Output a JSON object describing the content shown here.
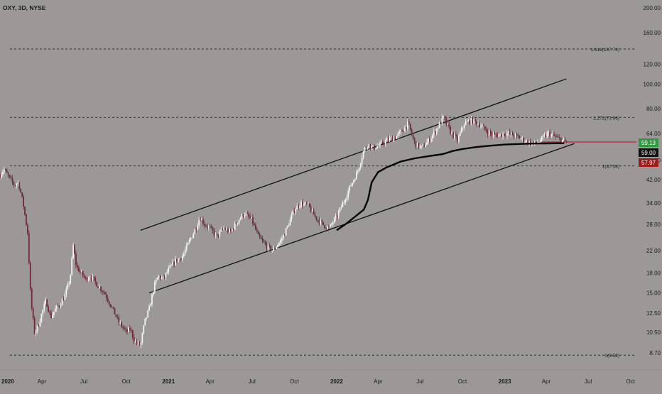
{
  "chart_data": {
    "type": "candlestick",
    "symbol_label": "OXY, 3D, NYSE",
    "y_scale": "log",
    "ylim": [
      7.5,
      215
    ],
    "x_start": "2020-01-01",
    "x_end": "2023-10-20",
    "y_ticks": [
      "200.00",
      "160.00",
      "120.00",
      "100.00",
      "80.00",
      "64.00",
      "50.00",
      "42.00",
      "34.00",
      "28.00",
      "22.00",
      "18.00",
      "15.00",
      "12.50",
      "10.50",
      "8.70"
    ],
    "x_ticks": [
      {
        "label": "2020",
        "date": "2020-01-01",
        "bold": true
      },
      {
        "label": "Apr",
        "date": "2020-04-01",
        "bold": false
      },
      {
        "label": "Jul",
        "date": "2020-07-01",
        "bold": false
      },
      {
        "label": "Oct",
        "date": "2020-10-01",
        "bold": false
      },
      {
        "label": "2021",
        "date": "2021-01-01",
        "bold": true
      },
      {
        "label": "Apr",
        "date": "2021-04-01",
        "bold": false
      },
      {
        "label": "Jul",
        "date": "2021-07-01",
        "bold": false
      },
      {
        "label": "Oct",
        "date": "2021-10-01",
        "bold": false
      },
      {
        "label": "2022",
        "date": "2022-01-01",
        "bold": true
      },
      {
        "label": "Apr",
        "date": "2022-04-01",
        "bold": false
      },
      {
        "label": "Jul",
        "date": "2022-07-01",
        "bold": false
      },
      {
        "label": "Oct",
        "date": "2022-10-01",
        "bold": false
      },
      {
        "label": "2023",
        "date": "2023-01-01",
        "bold": true
      },
      {
        "label": "Apr",
        "date": "2023-04-01",
        "bold": false
      },
      {
        "label": "Jul",
        "date": "2023-07-01",
        "bold": false
      },
      {
        "label": "Oct",
        "date": "2023-10-01",
        "bold": false
      }
    ],
    "fib_levels": [
      {
        "label": "1.618(137.74)",
        "value": 137.74
      },
      {
        "label": "1.272(73.96)",
        "value": 73.96
      },
      {
        "label": "1(47.58)",
        "value": 47.58
      },
      {
        "label": "0(8.52)",
        "value": 8.52
      }
    ],
    "channel_lines": [
      {
        "name": "upper",
        "points": [
          [
            "2020-11-01",
            26.5
          ],
          [
            "2023-05-15",
            105
          ]
        ]
      },
      {
        "name": "lower",
        "points": [
          [
            "2020-11-20",
            15
          ],
          [
            "2023-06-01",
            58.3
          ]
        ]
      }
    ],
    "moving_average": [
      [
        "2022-01-01",
        26.5
      ],
      [
        "2022-01-20",
        28.0
      ],
      [
        "2022-02-10",
        30.0
      ],
      [
        "2022-03-01",
        32.0
      ],
      [
        "2022-03-10",
        35.0
      ],
      [
        "2022-03-18",
        41.0
      ],
      [
        "2022-04-01",
        45.0
      ],
      [
        "2022-04-20",
        47.0
      ],
      [
        "2022-05-20",
        49.5
      ],
      [
        "2022-06-20",
        51.0
      ],
      [
        "2022-07-20",
        52.0
      ],
      [
        "2022-08-20",
        53.0
      ],
      [
        "2022-09-10",
        54.5
      ],
      [
        "2022-10-01",
        55.5
      ],
      [
        "2022-11-01",
        56.5
      ],
      [
        "2022-12-01",
        57.2
      ],
      [
        "2023-01-01",
        57.8
      ],
      [
        "2023-02-01",
        58.1
      ],
      [
        "2023-03-01",
        58.3
      ],
      [
        "2023-04-01",
        58.4
      ],
      [
        "2023-05-10",
        58.5
      ]
    ],
    "price_series": [
      [
        "2020-01-01",
        44
      ],
      [
        "2020-01-10",
        46
      ],
      [
        "2020-01-20",
        43
      ],
      [
        "2020-02-01",
        40
      ],
      [
        "2020-02-10",
        41
      ],
      [
        "2020-02-20",
        34
      ],
      [
        "2020-03-01",
        26
      ],
      [
        "2020-03-08",
        14
      ],
      [
        "2020-03-16",
        10.5
      ],
      [
        "2020-03-23",
        11
      ],
      [
        "2020-04-01",
        12.5
      ],
      [
        "2020-04-10",
        14
      ],
      [
        "2020-04-20",
        12
      ],
      [
        "2020-05-01",
        13
      ],
      [
        "2020-05-10",
        13.5
      ],
      [
        "2020-05-20",
        14.5
      ],
      [
        "2020-06-01",
        17
      ],
      [
        "2020-06-08",
        23
      ],
      [
        "2020-06-15",
        19
      ],
      [
        "2020-06-25",
        18
      ],
      [
        "2020-07-05",
        17
      ],
      [
        "2020-07-15",
        17.5
      ],
      [
        "2020-08-01",
        16
      ],
      [
        "2020-08-15",
        15
      ],
      [
        "2020-09-01",
        13
      ],
      [
        "2020-09-15",
        11.5
      ],
      [
        "2020-10-01",
        10.5
      ],
      [
        "2020-10-10",
        10.8
      ],
      [
        "2020-10-20",
        9.6
      ],
      [
        "2020-11-01",
        9.3
      ],
      [
        "2020-11-10",
        11.5
      ],
      [
        "2020-11-20",
        13
      ],
      [
        "2020-12-01",
        16
      ],
      [
        "2020-12-10",
        17.5
      ],
      [
        "2020-12-20",
        17
      ],
      [
        "2021-01-01",
        18.5
      ],
      [
        "2021-01-15",
        20
      ],
      [
        "2021-02-01",
        21
      ],
      [
        "2021-02-15",
        24
      ],
      [
        "2021-03-01",
        27
      ],
      [
        "2021-03-10",
        30
      ],
      [
        "2021-03-20",
        28
      ],
      [
        "2021-04-01",
        27
      ],
      [
        "2021-04-15",
        25
      ],
      [
        "2021-05-01",
        27
      ],
      [
        "2021-05-15",
        26
      ],
      [
        "2021-06-01",
        29
      ],
      [
        "2021-06-15",
        31
      ],
      [
        "2021-07-01",
        29
      ],
      [
        "2021-07-15",
        25
      ],
      [
        "2021-08-01",
        23
      ],
      [
        "2021-08-15",
        22
      ],
      [
        "2021-09-01",
        24
      ],
      [
        "2021-09-15",
        27
      ],
      [
        "2021-10-01",
        32
      ],
      [
        "2021-10-15",
        34
      ],
      [
        "2021-11-01",
        33
      ],
      [
        "2021-11-15",
        30
      ],
      [
        "2021-12-01",
        28
      ],
      [
        "2021-12-15",
        27
      ],
      [
        "2022-01-01",
        30
      ],
      [
        "2022-01-15",
        34
      ],
      [
        "2022-02-01",
        40
      ],
      [
        "2022-02-15",
        45
      ],
      [
        "2022-03-01",
        55
      ],
      [
        "2022-03-10",
        58
      ],
      [
        "2022-03-20",
        56
      ],
      [
        "2022-04-01",
        57
      ],
      [
        "2022-04-20",
        60
      ],
      [
        "2022-05-10",
        62
      ],
      [
        "2022-05-25",
        66
      ],
      [
        "2022-06-05",
        70
      ],
      [
        "2022-06-20",
        58
      ],
      [
        "2022-07-05",
        56
      ],
      [
        "2022-07-20",
        60
      ],
      [
        "2022-08-05",
        66
      ],
      [
        "2022-08-20",
        74
      ],
      [
        "2022-09-05",
        65
      ],
      [
        "2022-09-20",
        60
      ],
      [
        "2022-10-05",
        70
      ],
      [
        "2022-10-20",
        72
      ],
      [
        "2022-11-05",
        70
      ],
      [
        "2022-11-20",
        66
      ],
      [
        "2022-12-05",
        63
      ],
      [
        "2022-12-20",
        63
      ],
      [
        "2023-01-05",
        64
      ],
      [
        "2023-01-20",
        63
      ],
      [
        "2023-02-05",
        61
      ],
      [
        "2023-02-20",
        59
      ],
      [
        "2023-03-05",
        58
      ],
      [
        "2023-03-20",
        60
      ],
      [
        "2023-04-05",
        64
      ],
      [
        "2023-04-20",
        62
      ],
      [
        "2023-05-05",
        60
      ],
      [
        "2023-05-15",
        59
      ]
    ],
    "price_badges": [
      {
        "label": "59.13",
        "value": 59.13,
        "bg": "#2e9b3e"
      },
      {
        "label": "59.00",
        "value": 59.0,
        "bg": "#111111"
      },
      {
        "label": "57.97",
        "value": 57.97,
        "bg": "#9b1b1b"
      }
    ],
    "horizontal_line": {
      "value": 59.13,
      "color": "#b32a2a",
      "from": "2023-03-01"
    },
    "colors": {
      "background": "#9c9898",
      "candle_up": "#f2f2f2",
      "candle_down": "#6e2a36",
      "fib_line": "#2b2b2b",
      "channel": "#111111",
      "ma": "#050505",
      "axis_text": "#1a1a1a"
    }
  }
}
